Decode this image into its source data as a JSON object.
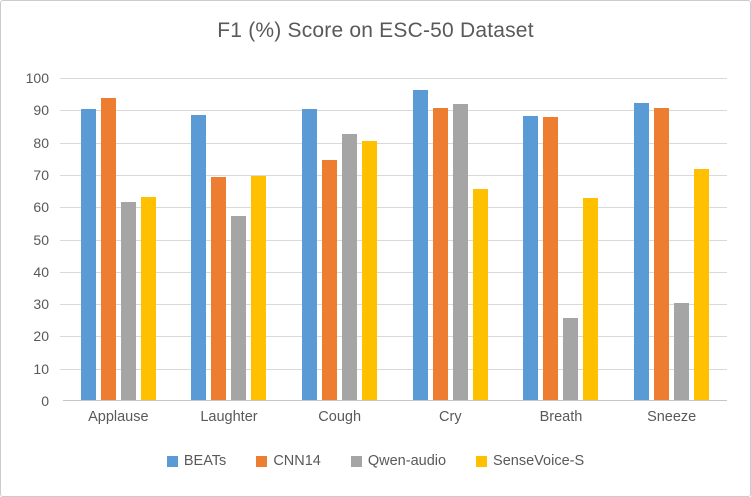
{
  "chart_data": {
    "type": "bar",
    "title": "F1 (%) Score on ESC-50 Dataset",
    "categories": [
      "Applause",
      "Laughter",
      "Cough",
      "Cry",
      "Breath",
      "Sneeze"
    ],
    "series": [
      {
        "name": "BEATs",
        "color": "#5B9BD5",
        "values": [
          90.2,
          88.2,
          90.2,
          96.0,
          87.8,
          91.9
        ]
      },
      {
        "name": "CNN14",
        "color": "#ED7D31",
        "values": [
          93.5,
          69.0,
          74.2,
          90.5,
          87.5,
          90.3
        ]
      },
      {
        "name": "Qwen-audio",
        "color": "#A5A5A5",
        "values": [
          61.3,
          57.0,
          82.5,
          91.5,
          25.4,
          30.0
        ]
      },
      {
        "name": "SenseVoice-S",
        "color": "#FFC000",
        "values": [
          62.7,
          69.3,
          80.3,
          65.4,
          62.4,
          71.5
        ]
      }
    ],
    "xlabel": "",
    "ylabel": "",
    "ylim": [
      0,
      100
    ],
    "ytick_step": 10,
    "yticks": [
      0,
      10,
      20,
      30,
      40,
      50,
      60,
      70,
      80,
      90,
      100
    ],
    "grid": "horizontal",
    "legend_position": "bottom-center",
    "colors": {
      "title_text": "#595959",
      "axis_text": "#595959",
      "gridline": "#D9D9D9",
      "axis_line": "#C6C6C6",
      "frame_border": "#CBCBCB",
      "background": "#FFFFFF"
    }
  }
}
